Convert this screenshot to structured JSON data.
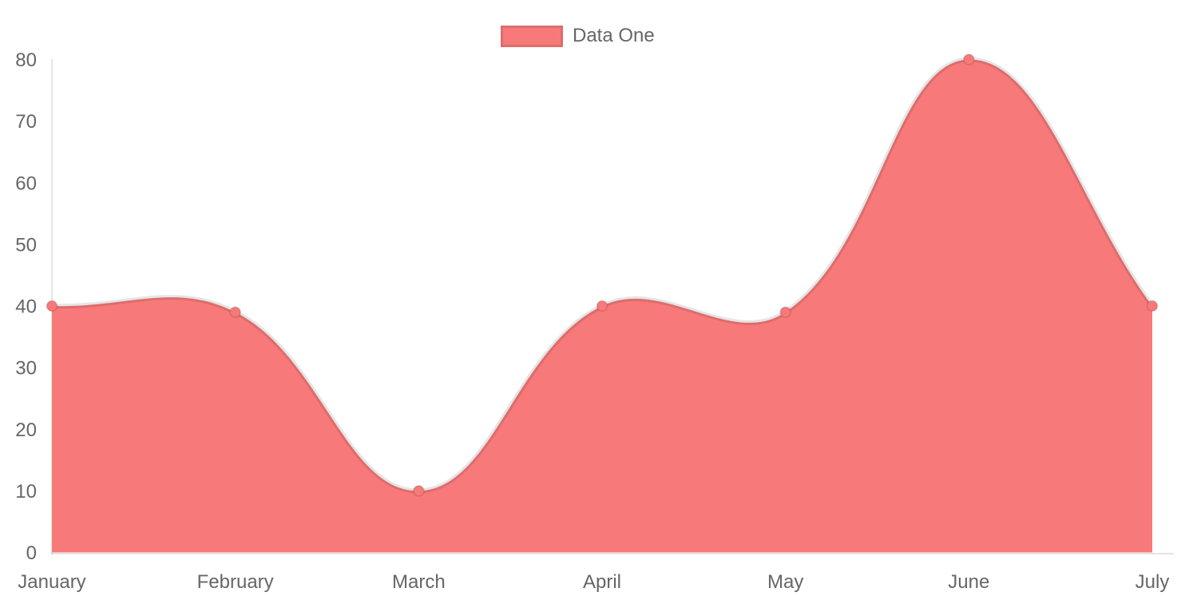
{
  "chart_data": {
    "type": "area",
    "categories": [
      "January",
      "February",
      "March",
      "April",
      "May",
      "June",
      "July"
    ],
    "series": [
      {
        "name": "Data One",
        "values": [
          40,
          39,
          10,
          40,
          39,
          80,
          40
        ],
        "fill_color": "#f87979",
        "line_color": "rgba(0,0,0,0.1)",
        "point_color": "#f87979",
        "point_border_color": "rgba(0,0,0,0.1)"
      }
    ],
    "title": "",
    "xlabel": "",
    "ylabel": "",
    "ylim": [
      0,
      80
    ],
    "y_ticks": [
      0,
      10,
      20,
      30,
      40,
      50,
      60,
      70,
      80
    ],
    "grid": false,
    "curve": "smooth-tension-0.4",
    "legend_position": "top",
    "axis_color": "rgba(0,0,0,0.1)",
    "tick_color": "#666666"
  }
}
